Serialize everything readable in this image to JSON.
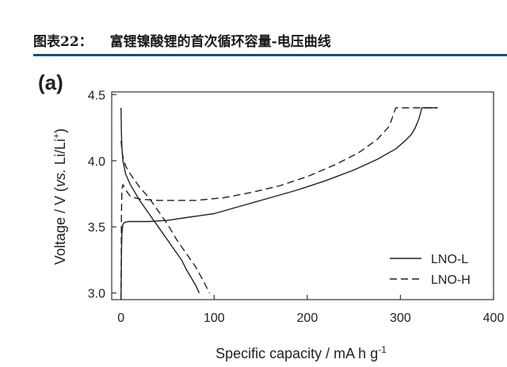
{
  "header": {
    "figure_number": "图表22：",
    "title": "富锂镍酸锂的首次循环容量-电压曲线"
  },
  "accent_color": "#1f4e79",
  "chart_data": {
    "type": "line",
    "panel_label": "(a)",
    "xlabel": "Specific capacity / mA h g",
    "xlabel_sup": "-1",
    "ylabel_pre": "Voltage / V (",
    "ylabel_italic": "vs.",
    "ylabel_post": " Li/Li",
    "ylabel_sup": "+",
    "ylabel_close": ")",
    "xlim": [
      -10,
      400
    ],
    "ylim": [
      2.95,
      4.52
    ],
    "x_ticks": [
      0,
      100,
      200,
      300,
      400
    ],
    "y_ticks": [
      3.0,
      3.5,
      4.0,
      4.5
    ],
    "x_tick_labels": [
      "0",
      "100",
      "200",
      "300",
      "400"
    ],
    "y_tick_labels": [
      "3.0",
      "3.5",
      "4.0",
      "4.5"
    ],
    "grid": false,
    "legend_position": "bottom-right",
    "series": [
      {
        "name": "LNO-L",
        "style": "solid",
        "charge": {
          "x": [
            0,
            0.5,
            1,
            2,
            4,
            8,
            15,
            30,
            50,
            70,
            100,
            130,
            160,
            190,
            220,
            250,
            275,
            295,
            305,
            312,
            316,
            320,
            323,
            340
          ],
          "y": [
            2.95,
            3.3,
            3.45,
            3.52,
            3.535,
            3.54,
            3.54,
            3.54,
            3.55,
            3.57,
            3.6,
            3.66,
            3.72,
            3.78,
            3.85,
            3.93,
            4.01,
            4.09,
            4.15,
            4.2,
            4.25,
            4.32,
            4.4,
            4.4
          ]
        },
        "discharge": {
          "x": [
            0,
            0.5,
            1,
            2,
            5,
            10,
            15,
            20,
            30,
            40,
            50,
            60,
            65,
            70,
            75,
            80,
            84
          ],
          "y": [
            4.4,
            4.2,
            4.1,
            4.0,
            3.9,
            3.82,
            3.76,
            3.7,
            3.6,
            3.5,
            3.4,
            3.3,
            3.25,
            3.18,
            3.12,
            3.06,
            3.0
          ]
        }
      },
      {
        "name": "LNO-H",
        "style": "dashed",
        "charge": {
          "x": [
            0,
            0.5,
            1,
            2,
            5,
            10,
            20,
            40,
            60,
            80,
            110,
            140,
            170,
            200,
            230,
            255,
            275,
            288,
            295,
            340
          ],
          "y": [
            2.95,
            3.6,
            3.78,
            3.82,
            3.78,
            3.73,
            3.71,
            3.7,
            3.7,
            3.7,
            3.72,
            3.76,
            3.81,
            3.88,
            3.97,
            4.06,
            4.16,
            4.26,
            4.4,
            4.4
          ]
        },
        "discharge": {
          "x": [
            0,
            0.5,
            1,
            2,
            5,
            10,
            20,
            30,
            40,
            50,
            60,
            70,
            80,
            90,
            95
          ],
          "y": [
            4.15,
            4.12,
            4.08,
            4.03,
            3.96,
            3.9,
            3.8,
            3.72,
            3.62,
            3.52,
            3.4,
            3.3,
            3.2,
            3.07,
            3.0
          ]
        }
      }
    ]
  }
}
